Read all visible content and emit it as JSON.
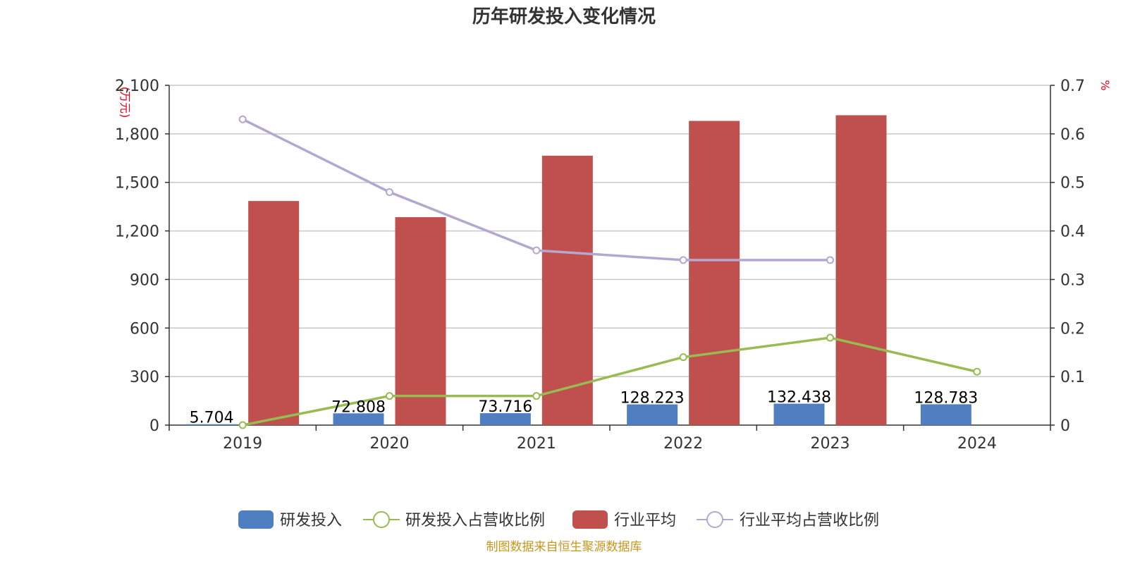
{
  "chart_data": {
    "type": "bar+line",
    "title": "历年研发投入变化情况",
    "categories": [
      "2019",
      "2020",
      "2021",
      "2022",
      "2023",
      "2024"
    ],
    "left_axis": {
      "unit": "(万元)",
      "ylim": [
        0,
        2100
      ],
      "ticks": [
        0,
        300,
        600,
        900,
        1200,
        1500,
        1800,
        2100
      ],
      "tick_labels": [
        "0",
        "300",
        "600",
        "900",
        "1,200",
        "1,500",
        "1,800",
        "2,100"
      ]
    },
    "right_axis": {
      "unit": "%",
      "ylim": [
        0,
        0.7
      ],
      "ticks": [
        0,
        0.1,
        0.2,
        0.3,
        0.4,
        0.5,
        0.6,
        0.7
      ],
      "tick_labels": [
        "0",
        "0.1",
        "0.2",
        "0.3",
        "0.4",
        "0.5",
        "0.6",
        "0.7"
      ]
    },
    "series": [
      {
        "name": "研发投入",
        "type": "bar",
        "axis": "left",
        "color": "#4f7fc0",
        "values": [
          5.704,
          72.808,
          73.716,
          128.223,
          132.438,
          128.783
        ],
        "labels": [
          "5.704",
          "72.808",
          "73.716",
          "128.223",
          "132.438",
          "128.783"
        ]
      },
      {
        "name": "研发投入占营收比例",
        "type": "line",
        "axis": "right",
        "color": "#98bb52",
        "values": [
          0.0,
          0.06,
          0.06,
          0.14,
          0.18,
          0.11
        ]
      },
      {
        "name": "行业平均",
        "type": "bar",
        "axis": "left",
        "color": "#c0504d",
        "values": [
          1385,
          1285,
          1665,
          1880,
          1915,
          null
        ]
      },
      {
        "name": "行业平均占营收比例",
        "type": "line",
        "axis": "right",
        "color": "#b4a7d0",
        "values": [
          0.63,
          0.48,
          0.36,
          0.34,
          0.34,
          null
        ]
      }
    ],
    "source": "制图数据来自恒生聚源数据库"
  }
}
